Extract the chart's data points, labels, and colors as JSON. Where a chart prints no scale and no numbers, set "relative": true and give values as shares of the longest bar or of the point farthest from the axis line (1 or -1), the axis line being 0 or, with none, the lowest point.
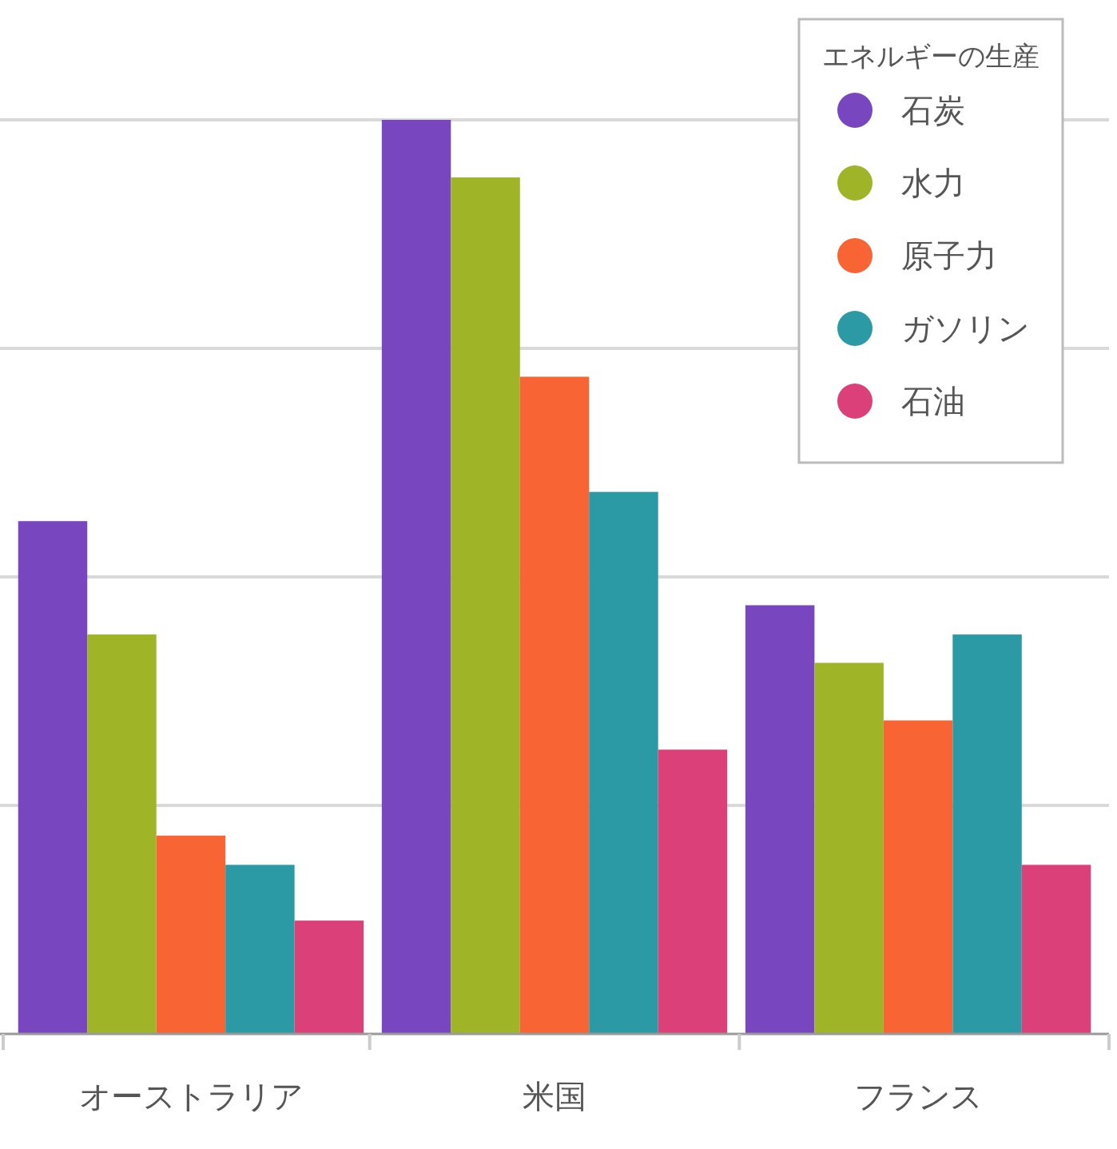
{
  "chart_data": {
    "type": "bar",
    "relative": true,
    "categories": [
      "オーストラリア",
      "米国",
      "フランス"
    ],
    "legend_title": "エネルギーの生産",
    "legend": "top right",
    "grid": "y",
    "series": [
      {
        "name": "石炭",
        "color": "#7846be",
        "values": [
          0.561,
          1,
          0.469
        ]
      },
      {
        "name": "水力",
        "color": "#a0b428",
        "values": [
          0.437,
          0.937,
          0.406
        ]
      },
      {
        "name": "原子力",
        "color": "#f86434",
        "values": [
          0.217,
          0.719,
          0.343
        ]
      },
      {
        "name": "ガソリン",
        "color": "#2c9aa4",
        "values": [
          0.185,
          0.593,
          0.437
        ]
      },
      {
        "name": "石油",
        "color": "#dc4078",
        "values": [
          0.124,
          0.311,
          0.185
        ]
      }
    ]
  }
}
